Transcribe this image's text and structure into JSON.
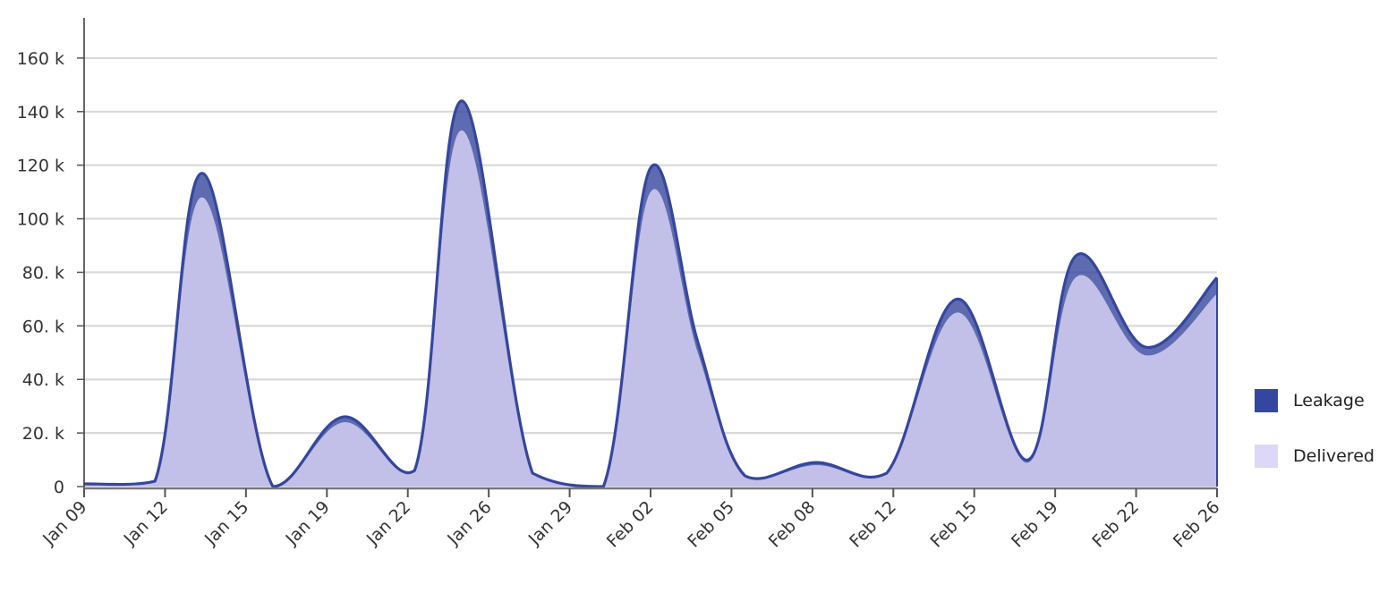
{
  "chart_data": {
    "type": "area",
    "stacked": true,
    "x_tick_labels": [
      "Jan 09",
      "Jan 12",
      "Jan 15",
      "Jan 19",
      "Jan 22",
      "Jan 26",
      "Jan 29",
      "Feb 02",
      "Feb 05",
      "Feb 08",
      "Feb 12",
      "Feb 15",
      "Feb 19",
      "Feb 22",
      "Feb 26"
    ],
    "x": [
      "Jan 09",
      "Jan 12",
      "Jan 14",
      "Jan 17",
      "Jan 20",
      "Jan 23",
      "Jan 25",
      "Jan 28",
      "Jan 31",
      "Feb 02",
      "Feb 04",
      "Feb 06",
      "Feb 09",
      "Feb 12",
      "Feb 15",
      "Feb 18",
      "Feb 20",
      "Feb 23",
      "Feb 26"
    ],
    "series": [
      {
        "name": "Delivered",
        "color": "#c2bfe8",
        "values": [
          1000,
          2000,
          108000,
          0,
          24000,
          6000,
          133000,
          5000,
          0,
          110000,
          50000,
          4000,
          8000,
          5000,
          65000,
          9000,
          78000,
          49000,
          72000
        ]
      },
      {
        "name": "Leakage",
        "color": "#3a4a9f",
        "values": [
          0,
          0,
          9000,
          0,
          2000,
          0,
          11000,
          0,
          0,
          9000,
          4000,
          0,
          1000,
          0,
          5000,
          1000,
          8000,
          3000,
          6000
        ]
      }
    ],
    "y_ticks": [
      "0",
      "20. k",
      "40. k",
      "60. k",
      "80. k",
      "100 k",
      "120 k",
      "140 k",
      "160 k"
    ],
    "ylim": [
      0,
      175000
    ],
    "grid": true,
    "legend": {
      "position": "right",
      "items": [
        {
          "label": "Leakage",
          "color": "#3546a0"
        },
        {
          "label": "Delivered",
          "color": "#ddd8f7"
        }
      ]
    }
  }
}
